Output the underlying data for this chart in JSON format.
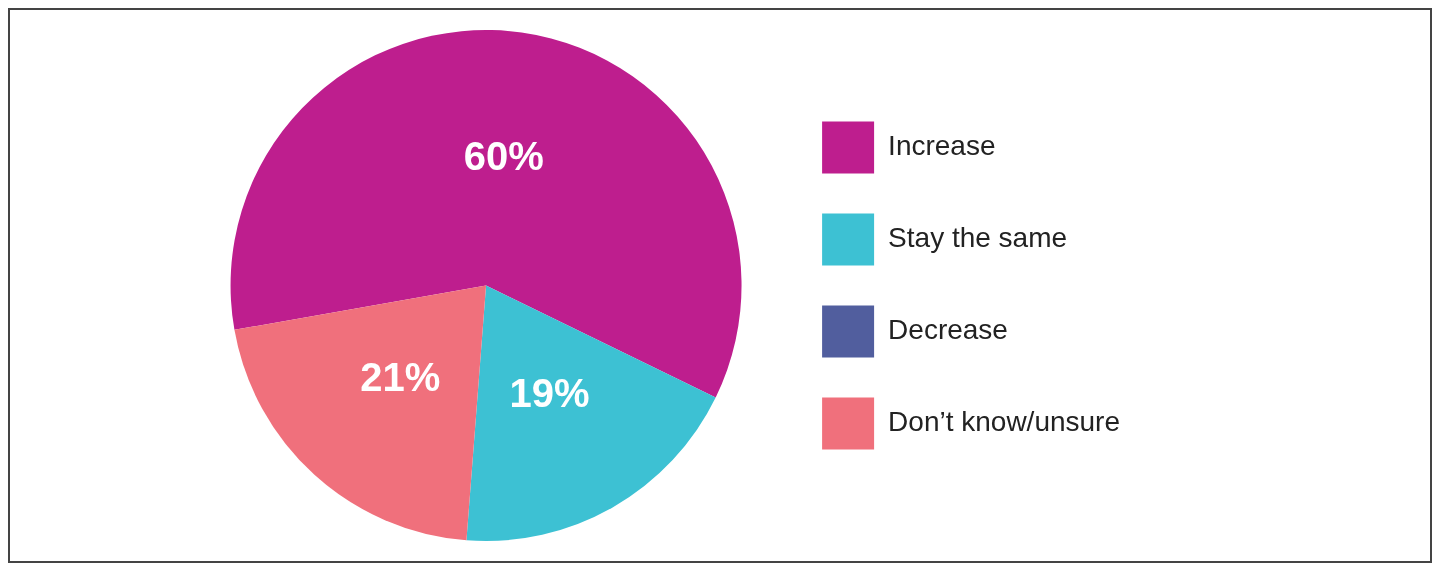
{
  "chart_data": {
    "type": "pie",
    "categories": [
      "Increase",
      "Stay the same",
      "Decrease",
      "Don’t know/unsure"
    ],
    "values": [
      60,
      19,
      0,
      21
    ],
    "value_labels": [
      "60%",
      "19%",
      null,
      "21%"
    ],
    "colors": [
      "#be1e8e",
      "#3dc1d3",
      "#515e9e",
      "#f0707c"
    ],
    "legend": "right"
  }
}
